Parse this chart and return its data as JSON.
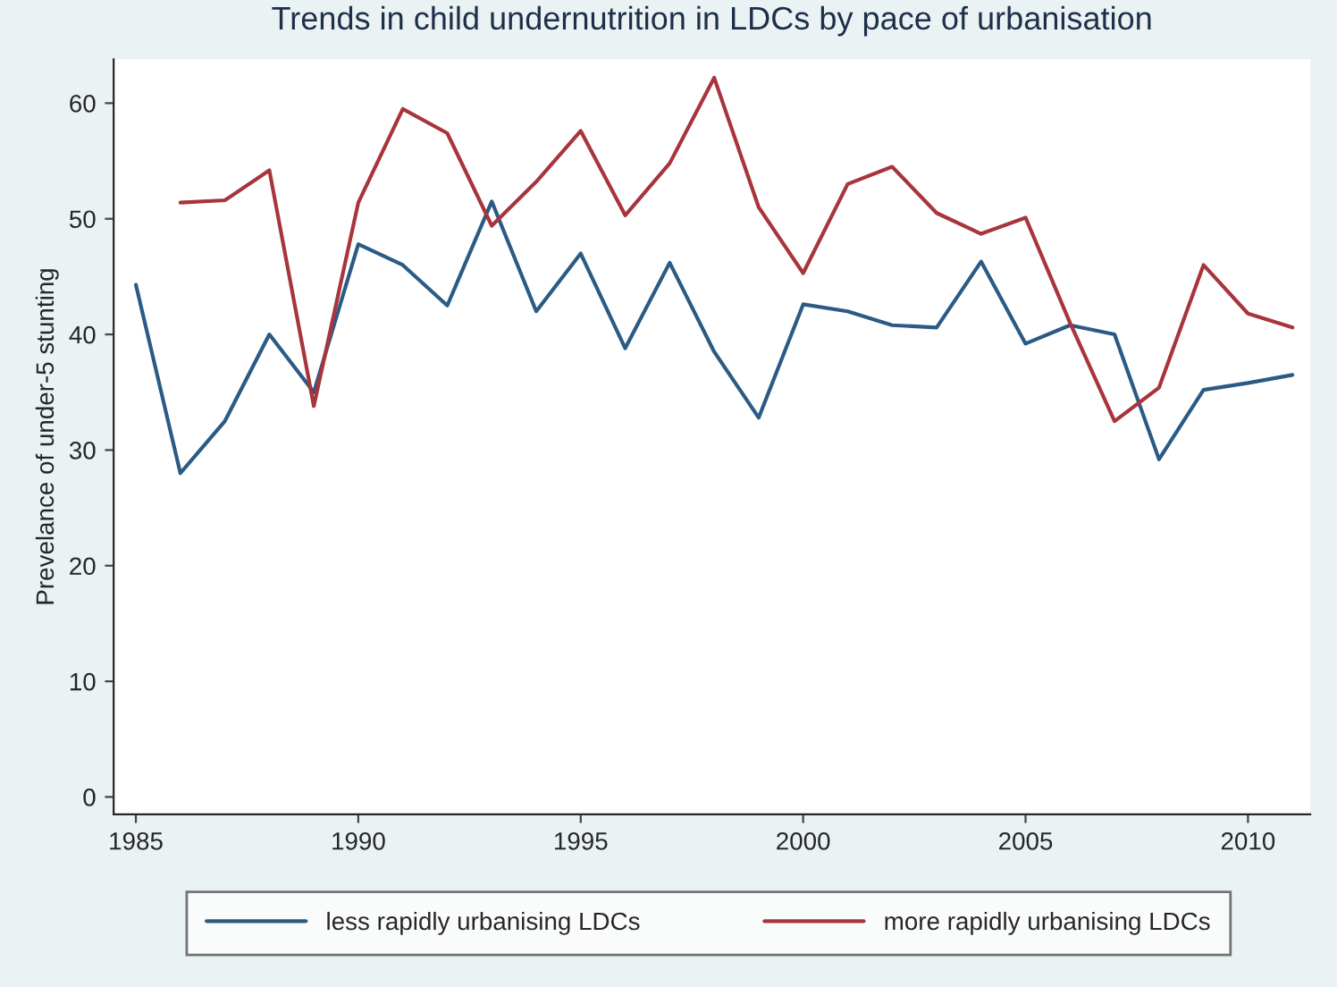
{
  "chart_data": {
    "type": "line",
    "title": "Trends in child undernutrition in LDCs by pace of urbanisation",
    "ylabel": "Prevelance of under-5 stunting",
    "x": [
      1985,
      1986,
      1987,
      1988,
      1989,
      1990,
      1991,
      1992,
      1993,
      1994,
      1995,
      1996,
      1997,
      1998,
      1999,
      2000,
      2001,
      2002,
      2003,
      2004,
      2005,
      2006,
      2007,
      2008,
      2009,
      2010,
      2011
    ],
    "series": [
      {
        "name": "less rapidly urbanising LDCs",
        "color": "#2b5b84",
        "values": [
          44.3,
          28,
          32.5,
          40,
          35,
          47.8,
          46,
          42.5,
          51.5,
          42,
          47,
          38.8,
          46.2,
          38.5,
          32.8,
          42.6,
          42,
          40.8,
          40.6,
          46.3,
          39.2,
          40.8,
          40,
          29.2,
          35.2,
          35.8,
          36.5
        ]
      },
      {
        "name": "more rapidly urbanising LDCs",
        "color": "#a8343c",
        "values": [
          null,
          51.4,
          51.6,
          54.2,
          33.8,
          51.4,
          59.5,
          57.4,
          49.4,
          53.2,
          57.6,
          50.3,
          54.8,
          62.2,
          51,
          45.3,
          53,
          54.5,
          50.5,
          48.7,
          50.1,
          41,
          32.5,
          35.4,
          46,
          41.8,
          40.6
        ]
      }
    ],
    "xlim": [
      1984.5,
      2011.4
    ],
    "xticks": [
      1985,
      1990,
      1995,
      2000,
      2005,
      2010
    ],
    "ylim": [
      -1.5,
      63.8
    ],
    "yticks": [
      0,
      10,
      20,
      30,
      40,
      50,
      60
    ],
    "grid": false,
    "legend": "bottom",
    "marker": "none",
    "line_style": "solid"
  }
}
